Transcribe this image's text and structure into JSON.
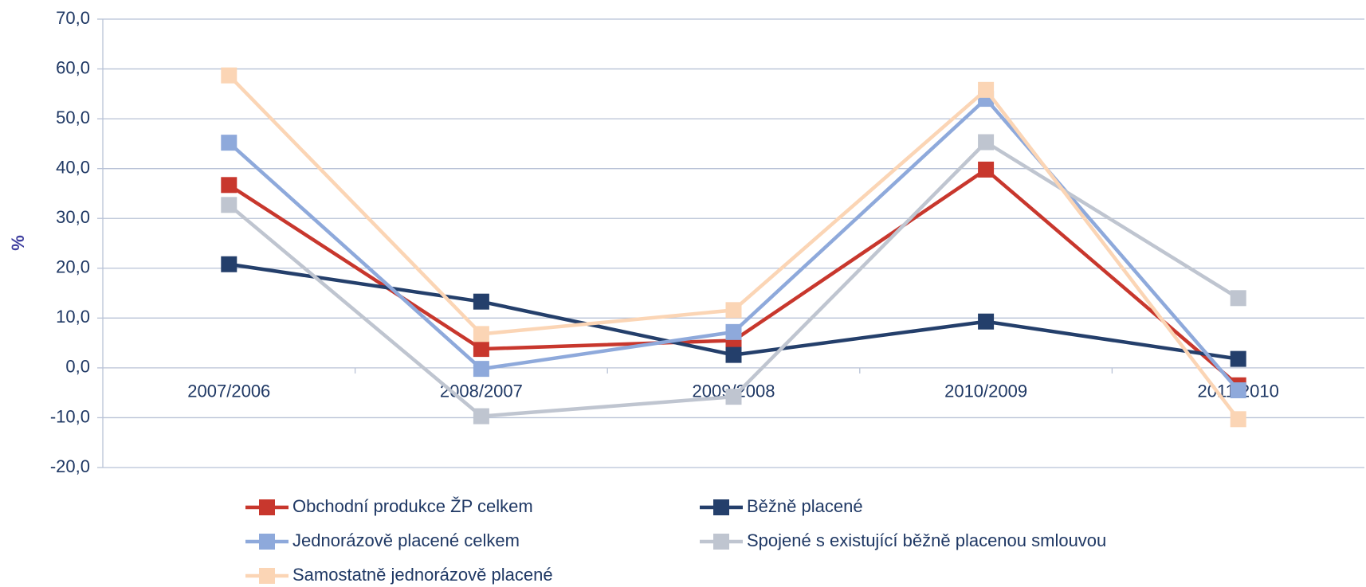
{
  "chart_data": {
    "type": "line",
    "y_label": "%",
    "categories": [
      "2007/2006",
      "2008/2007",
      "2009/2008",
      "2010/2009",
      "2011/2010"
    ],
    "series": [
      {
        "name": "Obchodní produkce ŽP celkem",
        "color": "#c8372d",
        "values": [
          36.7,
          3.8,
          5.5,
          39.8,
          -3.5
        ]
      },
      {
        "name": "Běžně placené",
        "color": "#243f6b",
        "values": [
          20.8,
          13.3,
          2.6,
          9.3,
          1.8
        ]
      },
      {
        "name": "Jednorázově placené celkem",
        "color": "#8ea9db",
        "values": [
          45.2,
          -0.2,
          7.2,
          54.0,
          -4.5
        ]
      },
      {
        "name": "Spojené s existující běžně placenou smlouvou",
        "color": "#bfc5d0",
        "values": [
          32.7,
          -9.7,
          -5.8,
          45.3,
          14.0
        ]
      },
      {
        "name": "Samostatně jednorázově placené",
        "color": "#fbd5b5",
        "values": [
          58.7,
          6.8,
          11.6,
          55.8,
          -10.3
        ]
      }
    ],
    "ylim": [
      -20,
      70
    ],
    "yticks": [
      {
        "value": -20,
        "label": "-20,0"
      },
      {
        "value": -10,
        "label": "-10,0"
      },
      {
        "value": 0,
        "label": "0,0"
      },
      {
        "value": 10,
        "label": "10,0"
      },
      {
        "value": 20,
        "label": "20,0"
      },
      {
        "value": 30,
        "label": "30,0"
      },
      {
        "value": 40,
        "label": "40,0"
      },
      {
        "value": 50,
        "label": "50,0"
      },
      {
        "value": 60,
        "label": "60,0"
      },
      {
        "value": 70,
        "label": "70,0"
      }
    ],
    "grid": true
  }
}
